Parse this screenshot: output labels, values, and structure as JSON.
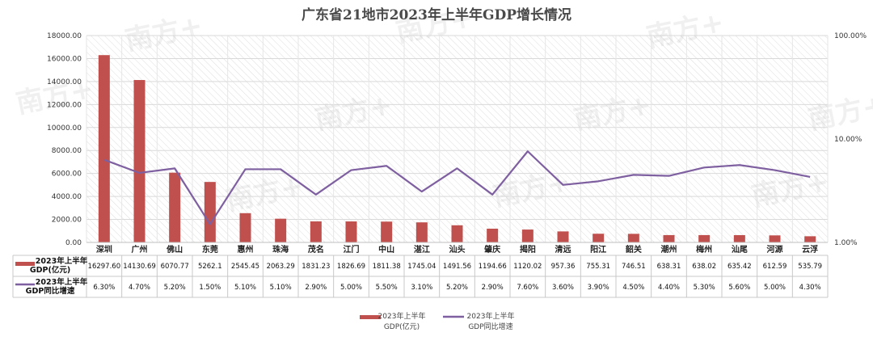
{
  "chart_data": {
    "type": "bar",
    "title": "广东省21地市2023年上半年GDP增长情况",
    "categories": [
      "深圳",
      "广州",
      "佛山",
      "东莞",
      "惠州",
      "珠海",
      "茂名",
      "江门",
      "中山",
      "湛江",
      "汕头",
      "肇庆",
      "揭阳",
      "清远",
      "阳江",
      "韶关",
      "潮州",
      "梅州",
      "汕尾",
      "河源",
      "云浮"
    ],
    "series": [
      {
        "name": "2023年上半年GDP(亿元)",
        "table_label": [
          "2023年上半年",
          "GDP(亿元)"
        ],
        "axis": "left",
        "type": "bar",
        "color": "#c0504d",
        "values": [
          16297.6,
          14130.69,
          6070.77,
          5262.1,
          2545.45,
          2063.29,
          1831.23,
          1826.69,
          1811.38,
          1745.04,
          1491.56,
          1194.66,
          1120.02,
          957.36,
          755.31,
          746.51,
          638.31,
          638.02,
          635.42,
          612.59,
          535.79
        ],
        "labels": [
          "16297.60",
          "14130.69",
          "6070.77",
          "5262.1",
          "2545.45",
          "2063.29",
          "1831.23",
          "1826.69",
          "1811.38",
          "1745.04",
          "1491.56",
          "1194.66",
          "1120.02",
          "957.36",
          "755.31",
          "746.51",
          "638.31",
          "638.02",
          "635.42",
          "612.59",
          "535.79"
        ]
      },
      {
        "name": "2023年上半年GDP同比增速",
        "table_label": [
          "2023年上半年",
          "GDP同比增速"
        ],
        "axis": "right",
        "type": "line",
        "color": "#7e5fa0",
        "values": [
          6.3,
          4.7,
          5.2,
          1.5,
          5.1,
          5.1,
          2.9,
          5.0,
          5.5,
          3.1,
          5.2,
          2.9,
          7.6,
          3.6,
          3.9,
          4.5,
          4.4,
          5.3,
          5.6,
          5.0,
          4.3
        ],
        "labels": [
          "6.30%",
          "4.70%",
          "5.20%",
          "1.50%",
          "5.10%",
          "5.10%",
          "2.90%",
          "5.00%",
          "5.50%",
          "3.10%",
          "5.20%",
          "2.90%",
          "7.60%",
          "3.60%",
          "3.90%",
          "4.50%",
          "4.40%",
          "5.30%",
          "5.60%",
          "5.00%",
          "4.30%"
        ]
      }
    ],
    "y_left": {
      "ylim": [
        0,
        18000
      ],
      "ticks": [
        "0.00",
        "2000.00",
        "4000.00",
        "6000.00",
        "8000.00",
        "10000.00",
        "12000.00",
        "14000.00",
        "16000.00",
        "18000.00"
      ]
    },
    "y_right": {
      "scale": "log",
      "ylim": [
        1,
        100
      ],
      "ticks": [
        "1.00%",
        "10.00%",
        "100.00%"
      ]
    },
    "grid": true,
    "legend": [
      "2023年上半年",
      "GDP(亿元)",
      "2023年上半年",
      "GDP同比增速"
    ],
    "legend_position": "bottom",
    "data_table": true
  },
  "watermark": "南方+"
}
